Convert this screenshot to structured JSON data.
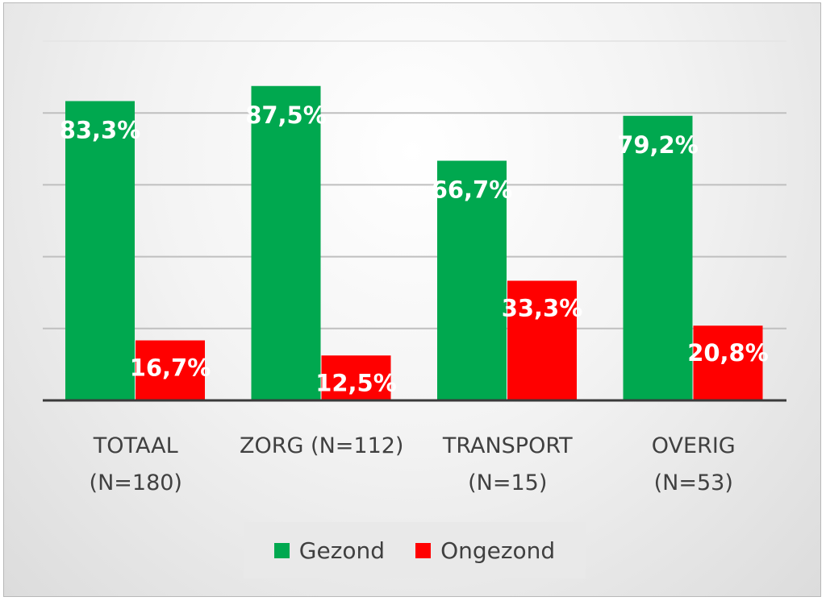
{
  "chart_data": {
    "type": "bar",
    "categories": [
      [
        "TOTAAL",
        "(N=180)"
      ],
      [
        "ZORG (N=112)"
      ],
      [
        "TRANSPORT",
        "(N=15)"
      ],
      [
        "OVERIG",
        "(N=53)"
      ]
    ],
    "series": [
      {
        "name": "Gezond",
        "color": "#00a84f",
        "values": [
          83.3,
          87.5,
          66.7,
          79.2
        ],
        "labels": [
          "83,3%",
          "87,5%",
          "66,7%",
          "79,2%"
        ]
      },
      {
        "name": "Ongezond",
        "color": "#ff0000",
        "values": [
          16.7,
          12.5,
          33.3,
          20.8
        ],
        "labels": [
          "16,7%",
          "12,5%",
          "33,3%",
          "20,8%"
        ]
      }
    ],
    "ylim": [
      0,
      100
    ],
    "gridlines": [
      20,
      40,
      60,
      80,
      100
    ],
    "grid": true,
    "legend_position": "bottom",
    "title": "",
    "xlabel": "",
    "ylabel": ""
  }
}
